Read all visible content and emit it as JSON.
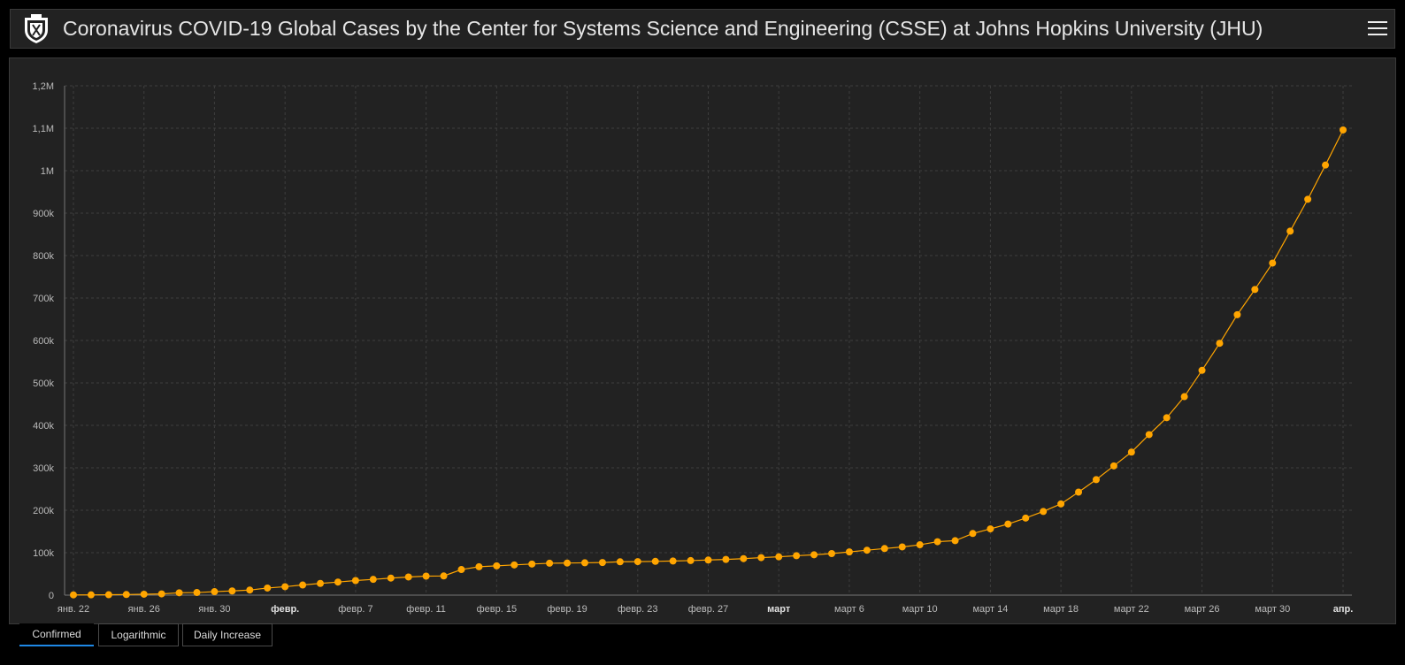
{
  "header": {
    "title": "Coronavirus COVID-19 Global Cases by the Center for Systems Science and Engineering (CSSE) at Johns Hopkins University (JHU)",
    "menu_icon": "hamburger-menu-icon",
    "logo_icon": "jhu-shield-logo-icon"
  },
  "tabs": [
    {
      "label": "Confirmed",
      "active": true
    },
    {
      "label": "Logarithmic",
      "active": false
    },
    {
      "label": "Daily Increase",
      "active": false
    }
  ],
  "colors": {
    "line": "#ffa500",
    "background": "#222222",
    "tab_active": "#1e88e5"
  },
  "chart_data": {
    "type": "line",
    "title": "",
    "xlabel": "",
    "ylabel": "",
    "ylim": [
      0,
      1200000
    ],
    "yticks": [
      {
        "value": 0,
        "label": "0"
      },
      {
        "value": 100000,
        "label": "100k"
      },
      {
        "value": 200000,
        "label": "200k"
      },
      {
        "value": 300000,
        "label": "300k"
      },
      {
        "value": 400000,
        "label": "400k"
      },
      {
        "value": 500000,
        "label": "500k"
      },
      {
        "value": 600000,
        "label": "600k"
      },
      {
        "value": 700000,
        "label": "700k"
      },
      {
        "value": 800000,
        "label": "800k"
      },
      {
        "value": 900000,
        "label": "900k"
      },
      {
        "value": 1000000,
        "label": "1M"
      },
      {
        "value": 1100000,
        "label": "1,1M"
      },
      {
        "value": 1200000,
        "label": "1,2M"
      }
    ],
    "xticks": [
      {
        "day": 0,
        "label": "янв. 22",
        "bold": false
      },
      {
        "day": 4,
        "label": "янв. 26",
        "bold": false
      },
      {
        "day": 8,
        "label": "янв. 30",
        "bold": false
      },
      {
        "day": 12,
        "label": "февр.",
        "bold": true
      },
      {
        "day": 16,
        "label": "февр. 7",
        "bold": false
      },
      {
        "day": 20,
        "label": "февр. 11",
        "bold": false
      },
      {
        "day": 24,
        "label": "февр. 15",
        "bold": false
      },
      {
        "day": 28,
        "label": "февр. 19",
        "bold": false
      },
      {
        "day": 32,
        "label": "февр. 23",
        "bold": false
      },
      {
        "day": 36,
        "label": "февр. 27",
        "bold": false
      },
      {
        "day": 40,
        "label": "март",
        "bold": true
      },
      {
        "day": 44,
        "label": "март 6",
        "bold": false
      },
      {
        "day": 48,
        "label": "март 10",
        "bold": false
      },
      {
        "day": 52,
        "label": "март 14",
        "bold": false
      },
      {
        "day": 56,
        "label": "март 18",
        "bold": false
      },
      {
        "day": 60,
        "label": "март 22",
        "bold": false
      },
      {
        "day": 64,
        "label": "март 26",
        "bold": false
      },
      {
        "day": 68,
        "label": "март 30",
        "bold": false
      },
      {
        "day": 72,
        "label": "апр.",
        "bold": true
      }
    ],
    "xdomain": [
      0,
      72
    ],
    "grid": true,
    "series": [
      {
        "name": "",
        "values": [
          555,
          654,
          941,
          1434,
          2118,
          2927,
          5578,
          6166,
          8234,
          9927,
          12038,
          16787,
          19881,
          23892,
          27635,
          30817,
          34391,
          37120,
          40150,
          42762,
          44802,
          45221,
          60368,
          66885,
          69030,
          71224,
          73258,
          75136,
          75639,
          76197,
          76823,
          78579,
          78965,
          79568,
          80413,
          81395,
          82754,
          84120,
          86011,
          88369,
          90306,
          92840,
          95120,
          97886,
          101801,
          105847,
          109821,
          113590,
          118620,
          125875,
          128343,
          145193,
          156097,
          167449,
          181546,
          197168,
          214915,
          242713,
          272167,
          304528,
          336953,
          378235,
          418045,
          467653,
          529591,
          593291,
          660693,
          720140,
          782389,
          857487,
          932605,
          1013157,
          1095917
        ]
      }
    ]
  }
}
